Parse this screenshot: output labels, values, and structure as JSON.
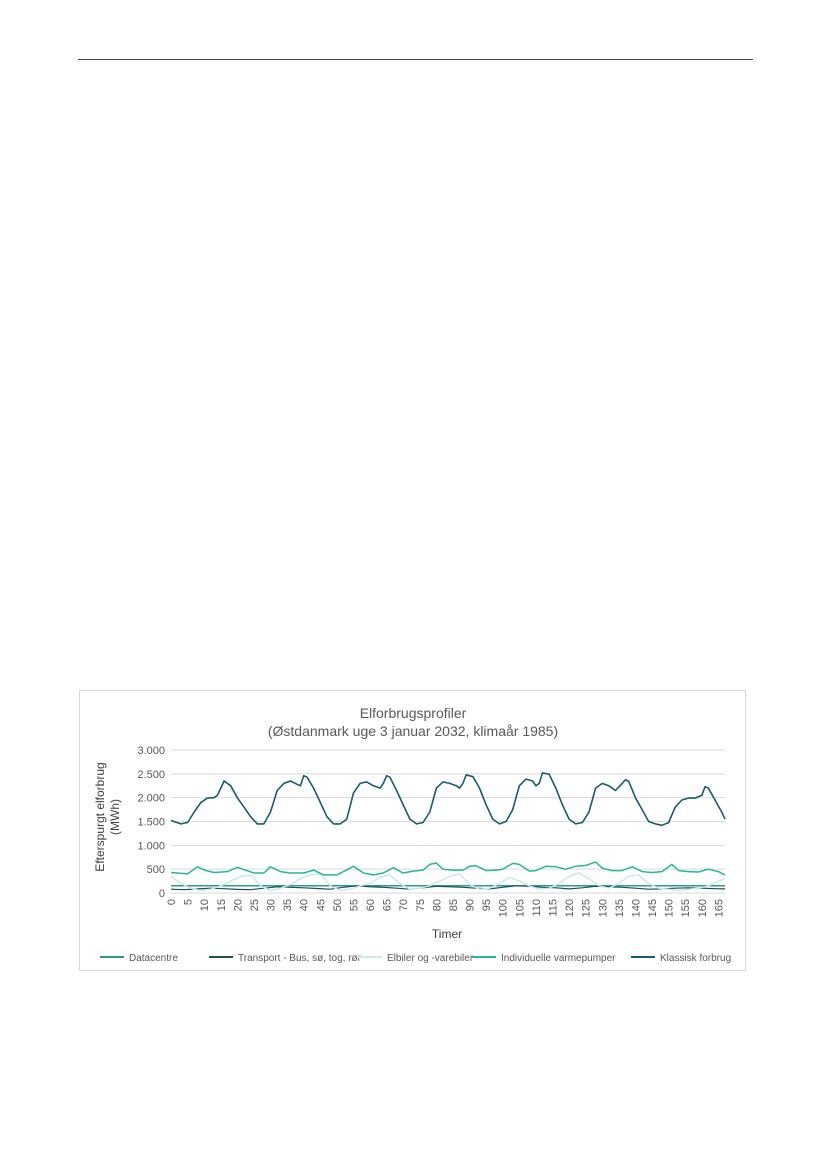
{
  "chart_data": {
    "type": "line",
    "title": "Elforbrugsprofiler",
    "subtitle": "(Østdanmark uge 3 januar 2032, klimaår 1985)",
    "xlabel": "Timer",
    "ylabel_line1": "Efterspurgt elforbrug",
    "ylabel_line2": "(MWh)",
    "xlim": [
      0,
      167
    ],
    "ylim": [
      0,
      3000
    ],
    "yticks": [
      0,
      500,
      1000,
      1500,
      2000,
      2500,
      3000
    ],
    "ytick_labels": [
      "0",
      "500",
      "1.000",
      "1.500",
      "2.000",
      "2.500",
      "3.000"
    ],
    "xticks": [
      0,
      5,
      10,
      15,
      20,
      25,
      30,
      35,
      40,
      45,
      50,
      55,
      60,
      65,
      70,
      75,
      80,
      85,
      90,
      95,
      100,
      105,
      110,
      115,
      120,
      125,
      130,
      135,
      140,
      145,
      150,
      155,
      160,
      165
    ],
    "grid": "horizontal",
    "legend_position": "bottom",
    "series": [
      {
        "name": "Datacentre",
        "color": "#2a9d8f",
        "width": 1.5,
        "x": [
          0,
          167
        ],
        "y": [
          150,
          150
        ]
      },
      {
        "name": "Transport - Bus, sø, tog, rør",
        "color": "#1f4e5f",
        "width": 1.2,
        "x": [
          0,
          4,
          8,
          12,
          16,
          20,
          24,
          28,
          32,
          36,
          40,
          44,
          48,
          52,
          56,
          60,
          64,
          68,
          72,
          76,
          80,
          84,
          88,
          92,
          96,
          100,
          104,
          108,
          112,
          116,
          120,
          124,
          128,
          132,
          136,
          140,
          144,
          148,
          152,
          156,
          160,
          164,
          167
        ],
        "y": [
          80,
          70,
          85,
          100,
          90,
          75,
          70,
          100,
          130,
          120,
          110,
          95,
          80,
          120,
          150,
          130,
          120,
          100,
          80,
          110,
          140,
          130,
          120,
          100,
          85,
          120,
          150,
          140,
          120,
          110,
          85,
          110,
          140,
          130,
          120,
          100,
          80,
          85,
          100,
          110,
          100,
          90,
          85
        ]
      },
      {
        "name": "Elbiler og -varebiler",
        "color": "#c9e9ee",
        "width": 1.5,
        "x": [
          0,
          3,
          6,
          9,
          12,
          15,
          18,
          21,
          24,
          27,
          30,
          33,
          36,
          39,
          42,
          45,
          48,
          51,
          54,
          57,
          60,
          63,
          66,
          69,
          72,
          75,
          78,
          81,
          84,
          87,
          90,
          93,
          96,
          99,
          102,
          105,
          108,
          111,
          114,
          117,
          120,
          123,
          126,
          129,
          132,
          135,
          138,
          141,
          144,
          147,
          150,
          153,
          156,
          159,
          162,
          165,
          167
        ],
        "y": [
          350,
          200,
          100,
          50,
          80,
          150,
          250,
          350,
          380,
          150,
          50,
          100,
          180,
          300,
          380,
          400,
          150,
          50,
          80,
          150,
          200,
          330,
          380,
          200,
          80,
          100,
          150,
          250,
          350,
          400,
          180,
          80,
          100,
          200,
          330,
          250,
          150,
          80,
          100,
          200,
          350,
          420,
          300,
          150,
          100,
          200,
          350,
          380,
          200,
          100,
          80,
          50,
          80,
          100,
          150,
          250,
          300
        ]
      },
      {
        "name": "Individuelle varmepumper",
        "color": "#26b89a",
        "width": 1.5,
        "x": [
          0,
          5,
          8,
          10,
          13,
          17,
          20,
          25,
          28,
          30,
          33,
          36,
          40,
          43,
          46,
          50,
          52,
          55,
          58,
          61,
          64,
          67,
          70,
          73,
          76,
          78,
          80,
          82,
          85,
          88,
          90,
          92,
          95,
          98,
          100,
          103,
          105,
          108,
          110,
          113,
          116,
          119,
          122,
          125,
          128,
          130,
          133,
          136,
          139,
          142,
          145,
          148,
          151,
          153,
          156,
          159,
          162,
          165,
          167
        ],
        "y": [
          430,
          400,
          550,
          480,
          430,
          450,
          540,
          420,
          420,
          550,
          450,
          420,
          420,
          480,
          380,
          380,
          450,
          560,
          420,
          380,
          420,
          530,
          420,
          460,
          480,
          600,
          630,
          500,
          480,
          480,
          560,
          570,
          470,
          480,
          500,
          620,
          600,
          460,
          470,
          560,
          550,
          500,
          560,
          580,
          650,
          520,
          470,
          470,
          550,
          450,
          430,
          450,
          600,
          470,
          450,
          440,
          500,
          450,
          380
        ]
      },
      {
        "name": "Klassisk forbrug",
        "color": "#155e70",
        "width": 1.6,
        "x": [
          0,
          3,
          5,
          7,
          9,
          11,
          13,
          14,
          15,
          16,
          18,
          20,
          22,
          24,
          26,
          28,
          30,
          32,
          34,
          36,
          38,
          39,
          40,
          41,
          43,
          45,
          47,
          49,
          51,
          53,
          55,
          57,
          59,
          61,
          63,
          64,
          65,
          66,
          68,
          70,
          72,
          74,
          76,
          78,
          80,
          82,
          84,
          86,
          87,
          88,
          89,
          91,
          93,
          95,
          97,
          99,
          101,
          103,
          105,
          107,
          109,
          110,
          111,
          112,
          114,
          116,
          118,
          120,
          122,
          124,
          126,
          128,
          130,
          132,
          134,
          136,
          137,
          138,
          140,
          142,
          144,
          146,
          148,
          150,
          152,
          154,
          156,
          158,
          160,
          161,
          162,
          164,
          166,
          167
        ],
        "y": [
          1520,
          1450,
          1480,
          1700,
          1900,
          1990,
          2000,
          2050,
          2200,
          2350,
          2250,
          2000,
          1800,
          1600,
          1450,
          1450,
          1700,
          2150,
          2300,
          2350,
          2280,
          2250,
          2460,
          2430,
          2200,
          1900,
          1600,
          1450,
          1450,
          1550,
          2100,
          2300,
          2330,
          2250,
          2200,
          2300,
          2460,
          2430,
          2150,
          1850,
          1550,
          1450,
          1480,
          1700,
          2200,
          2330,
          2300,
          2250,
          2200,
          2300,
          2480,
          2440,
          2200,
          1850,
          1550,
          1450,
          1500,
          1750,
          2250,
          2390,
          2350,
          2250,
          2300,
          2520,
          2490,
          2200,
          1850,
          1550,
          1450,
          1480,
          1700,
          2200,
          2300,
          2250,
          2150,
          2300,
          2380,
          2340,
          2000,
          1750,
          1500,
          1450,
          1420,
          1480,
          1800,
          1950,
          1990,
          1990,
          2050,
          2230,
          2200,
          1950,
          1700,
          1550
        ]
      }
    ]
  }
}
